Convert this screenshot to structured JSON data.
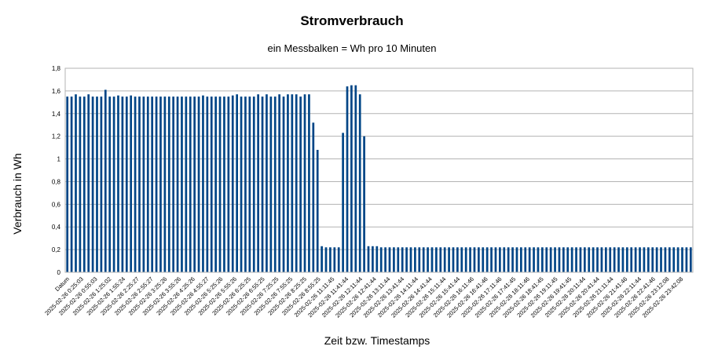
{
  "chart_data": {
    "type": "bar",
    "title": "Stromverbrauch",
    "subtitle": "ein Messbalken = Wh pro 10 Minuten",
    "xlabel": "Zeit bzw. Timestamps",
    "ylabel": "Verbrauch in Wh",
    "ylim": [
      0,
      1.8
    ],
    "yticks": [
      "0",
      "0,2",
      "0,4",
      "0,6",
      "0,8",
      "1",
      "1,2",
      "1,4",
      "1,6",
      "1,8"
    ],
    "grid": true,
    "legend": "none",
    "bar_color": "#004586",
    "tick_labels": [
      "Datum",
      "2025-02-26 0:25:03",
      "2025-02-26 0:55:03",
      "2025-02-26 1:25:02",
      "2025-02-26 1:55:24",
      "2025-02-26 2:25:27",
      "2025-02-26 2:55:27",
      "2025-02-26 3:25:26",
      "2025-02-26 3:55:26",
      "2025-02-26 4:25:26",
      "2025-02-26 4:55:27",
      "2025-02-26 5:25:26",
      "2025-02-26 5:55:26",
      "2025-02-26 6:25:25",
      "2025-02-26 6:55:25",
      "2025-02-26 7:25:25",
      "2025-02-26 7:55:25",
      "2025-02-26 8:25:25",
      "2025-02-26 8:55:25",
      "2025-02-26 11:11:45",
      "2025-02-26 11:41:44",
      "2025-02-26 12:11:44",
      "2025-02-26 12:41:44",
      "2025-02-26 13:11:44",
      "2025-02-26 13:41:44",
      "2025-02-26 14:11:44",
      "2025-02-26 14:41:44",
      "2025-02-26 15:11:44",
      "2025-02-26 15:41:44",
      "2025-02-26 16:11:46",
      "2025-02-26 16:41:46",
      "2025-02-26 17:11:46",
      "2025-02-26 17:41:45",
      "2025-02-26 18:11:46",
      "2025-02-26 18:41:45",
      "2025-02-26 19:11:45",
      "2025-02-26 19:41:45",
      "2025-02-26 20:11:44",
      "2025-02-26 20:41:44",
      "2025-02-26 21:11:44",
      "2025-02-26 21:41:46",
      "2025-02-26 22:11:44",
      "2025-02-26 22:41:46",
      "2025-02-26 23:12:08",
      "2025-02-26 23:42:08"
    ],
    "values": [
      1.55,
      1.55,
      1.57,
      1.55,
      1.55,
      1.57,
      1.55,
      1.55,
      1.55,
      1.61,
      1.55,
      1.55,
      1.56,
      1.55,
      1.55,
      1.56,
      1.55,
      1.55,
      1.55,
      1.55,
      1.55,
      1.55,
      1.55,
      1.55,
      1.55,
      1.55,
      1.55,
      1.55,
      1.55,
      1.55,
      1.55,
      1.55,
      1.56,
      1.55,
      1.55,
      1.55,
      1.55,
      1.55,
      1.55,
      1.56,
      1.57,
      1.55,
      1.55,
      1.55,
      1.55,
      1.57,
      1.55,
      1.57,
      1.55,
      1.55,
      1.57,
      1.55,
      1.57,
      1.57,
      1.57,
      1.55,
      1.57,
      1.57,
      1.32,
      1.08,
      0.23,
      0.22,
      0.22,
      0.22,
      0.22,
      1.23,
      1.64,
      1.65,
      1.65,
      1.57,
      1.2,
      0.23,
      0.23,
      0.23,
      0.22,
      0.22,
      0.22,
      0.22,
      0.22,
      0.22,
      0.22,
      0.22,
      0.22,
      0.22,
      0.22,
      0.22,
      0.22,
      0.22,
      0.22,
      0.22,
      0.22,
      0.22,
      0.22,
      0.22,
      0.22,
      0.22,
      0.22,
      0.22,
      0.22,
      0.22,
      0.22,
      0.22,
      0.22,
      0.22,
      0.22,
      0.22,
      0.22,
      0.22,
      0.22,
      0.22,
      0.22,
      0.22,
      0.22,
      0.22,
      0.22,
      0.22,
      0.22,
      0.22,
      0.22,
      0.22,
      0.22,
      0.22,
      0.22,
      0.22,
      0.22,
      0.22,
      0.22,
      0.22,
      0.22,
      0.22,
      0.22,
      0.22,
      0.22,
      0.22,
      0.22,
      0.22,
      0.22,
      0.22,
      0.22,
      0.22,
      0.22,
      0.22,
      0.22,
      0.22,
      0.22,
      0.22,
      0.22,
      0.22
    ]
  }
}
